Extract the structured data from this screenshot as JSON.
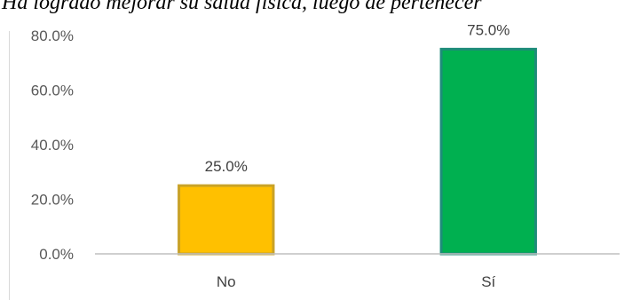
{
  "chart_data": {
    "type": "bar",
    "title": "Ha logrado mejorar su salud física, luego de pertenecer",
    "xlabel": "",
    "ylabel": "",
    "categories": [
      "No",
      "Sí"
    ],
    "values": [
      25.0,
      75.0
    ],
    "value_labels": [
      "25.0%",
      "75.0%"
    ],
    "ylim": [
      0,
      80
    ],
    "yticks": [
      0,
      20,
      40,
      60,
      80
    ],
    "ytick_labels": [
      "0.0%",
      "20.0%",
      "40.0%",
      "60.0%",
      "80.0%"
    ],
    "grid": false,
    "legend": "none",
    "bar_colors": [
      "#FFC000",
      "#00B050"
    ],
    "bar_border_colors": [
      "#C9A227",
      "#1E8C7A"
    ]
  }
}
